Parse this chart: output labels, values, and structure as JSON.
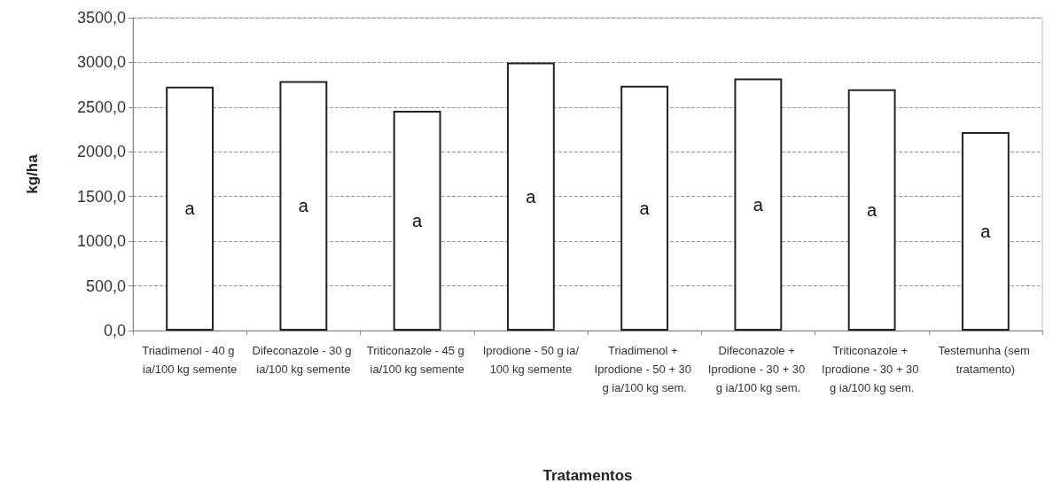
{
  "chart_data": {
    "type": "bar",
    "xlabel": "Tratamentos",
    "ylabel": "kg/ha",
    "categories": [
      "Triadimenol - 40 g ia/100 kg semente",
      "Difeconazole - 30 g ia/100 kg semente",
      "Triticonazole - 45 g ia/100 kg semente",
      "Iprodione - 50 g ia/100 kg semente",
      "Triadimenol + Iprodione - 50 + 30 g ia/100 kg sem.",
      "Difeconazole + Iprodione - 30 + 30 g ia/100 kg sem.",
      "Triticonazole + Iprodione - 30 + 30 g ia/100 kg sem.",
      "Testemunha (sem tratamento)"
    ],
    "values": [
      2730,
      2790,
      2460,
      3000,
      2740,
      2820,
      2700,
      2220
    ],
    "color": "#ffffff",
    "ylim": [
      0,
      3500
    ],
    "yticks": [
      {
        "value": 0,
        "label": "0,0"
      },
      {
        "value": 500,
        "label": "500,0"
      },
      {
        "value": 1000,
        "label": "1000,0"
      },
      {
        "value": 1500,
        "label": "1500,0"
      },
      {
        "value": 2000,
        "label": "2000,0"
      },
      {
        "value": 2500,
        "label": "2500,0"
      },
      {
        "value": 3000,
        "label": "3000,0"
      },
      {
        "value": 3500,
        "label": "3500,0"
      }
    ],
    "grid": "y",
    "annotations": [
      "a",
      "a",
      "a",
      "a",
      "a",
      "a",
      "a",
      "a"
    ]
  }
}
